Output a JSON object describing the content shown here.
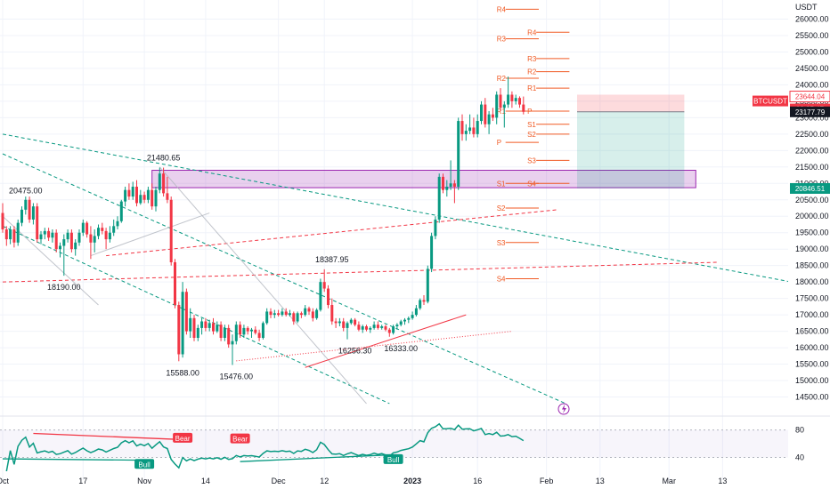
{
  "chart_data": {
    "type": "candlestick",
    "symbol": "BTCUSDT",
    "y_unit": "USDT",
    "price_axis": {
      "range": [
        14000,
        26500
      ],
      "ticks": [
        26000,
        25500,
        25000,
        24500,
        24000,
        23500,
        23000,
        22500,
        22000,
        21500,
        21000,
        20500,
        20000,
        19500,
        19000,
        18500,
        18000,
        17500,
        17000,
        16500,
        16000,
        15500,
        15000,
        14500
      ],
      "tick_labels": [
        "26000.00",
        "25500.00",
        "25000.00",
        "24500.00",
        "24000.00",
        "23500.00",
        "23000.00",
        "22500.00",
        "22000.00",
        "21500.00",
        "21000.00",
        "20500.00",
        "20000.00",
        "19500.00",
        "19000.00",
        "18500.00",
        "18000.00",
        "17500.00",
        "17000.00",
        "16500.00",
        "16000.00",
        "15500.00",
        "15000.00",
        "14500.00"
      ]
    },
    "time_axis": {
      "labels": [
        "Oct",
        "17",
        "Nov",
        "14",
        "Dec",
        "12",
        "2023",
        "16",
        "Feb",
        "13",
        "Mar",
        "13"
      ],
      "label_positions": [
        0,
        21,
        37,
        53,
        72,
        84,
        107,
        124,
        142,
        156,
        174,
        188
      ]
    },
    "price_tags": [
      {
        "label": "23644.04",
        "value": 23644.04,
        "color": "#f23645",
        "style": "outline"
      },
      {
        "label": "BTCUSDT",
        "value": 23400,
        "color": "#f23645",
        "style": "solid"
      },
      {
        "label": "08:35:47",
        "value": 23400,
        "color": "#f23645",
        "style": "solid"
      },
      {
        "label": "23177.79",
        "value": 23177.79,
        "color": "#131722",
        "style": "solid"
      },
      {
        "label": "20846.51",
        "value": 20846.51,
        "color": "#089981",
        "style": "solid"
      }
    ],
    "annotations": [
      {
        "text": "21480.65",
        "value": 21480.65,
        "bar": 42,
        "pos": "above"
      },
      {
        "text": "20475.00",
        "value": 20475,
        "bar": 6,
        "pos": "above"
      },
      {
        "text": "18190.00",
        "value": 18190,
        "bar": 16,
        "pos": "below"
      },
      {
        "text": "18387.95",
        "value": 18387.95,
        "bar": 86,
        "pos": "above"
      },
      {
        "text": "15588.00",
        "value": 15588,
        "bar": 47,
        "pos": "below"
      },
      {
        "text": "15476.00",
        "value": 15476,
        "bar": 61,
        "pos": "below"
      },
      {
        "text": "16256.30",
        "value": 16256.3,
        "bar": 92,
        "pos": "below"
      },
      {
        "text": "16333.00",
        "value": 16333,
        "bar": 104,
        "pos": "below"
      }
    ],
    "zone": {
      "from_bar": 39,
      "to_bar": 181,
      "low": 20870,
      "high": 21400,
      "color": "#9c27b0"
    },
    "position": {
      "from_bar": 150,
      "to_bar": 178,
      "entry": 23177.79,
      "stop": 23700,
      "target": 20846.51
    },
    "pivot_levels": [
      {
        "label": "R4",
        "value": 26300,
        "from_bar": 129,
        "to_bar": 140
      },
      {
        "label": "R3",
        "value": 25400,
        "from_bar": 129,
        "to_bar": 140
      },
      {
        "label": "R2",
        "value": 24200,
        "from_bar": 129,
        "to_bar": 140
      },
      {
        "label": "R1",
        "value": 23200,
        "from_bar": 129,
        "to_bar": 140
      },
      {
        "label": "P",
        "value": 22250,
        "from_bar": 129,
        "to_bar": 140
      },
      {
        "label": "S1",
        "value": 21000,
        "from_bar": 129,
        "to_bar": 140
      },
      {
        "label": "S2",
        "value": 20250,
        "from_bar": 129,
        "to_bar": 140
      },
      {
        "label": "S3",
        "value": 19200,
        "from_bar": 129,
        "to_bar": 140
      },
      {
        "label": "S4",
        "value": 18100,
        "from_bar": 129,
        "to_bar": 140
      },
      {
        "label": "R4",
        "value": 25600,
        "from_bar": 137,
        "to_bar": 148
      },
      {
        "label": "R3",
        "value": 24800,
        "from_bar": 137,
        "to_bar": 148
      },
      {
        "label": "R2",
        "value": 24400,
        "from_bar": 137,
        "to_bar": 148
      },
      {
        "label": "R1",
        "value": 23900,
        "from_bar": 137,
        "to_bar": 148
      },
      {
        "label": "P",
        "value": 23200,
        "from_bar": 137,
        "to_bar": 148
      },
      {
        "label": "S1",
        "value": 22800,
        "from_bar": 137,
        "to_bar": 148
      },
      {
        "label": "S2",
        "value": 22500,
        "from_bar": 137,
        "to_bar": 148
      },
      {
        "label": "S3",
        "value": 21700,
        "from_bar": 137,
        "to_bar": 148
      },
      {
        "label": "S4",
        "value": 21000,
        "from_bar": 137,
        "to_bar": 148
      }
    ],
    "trend_lines": [
      {
        "style": "dashed",
        "color": "#089981",
        "from": [
          0,
          22500
        ],
        "to": [
          206,
          18000
        ]
      },
      {
        "style": "dashed",
        "color": "#089981",
        "from": [
          0,
          21900
        ],
        "to": [
          147,
          14300
        ]
      },
      {
        "style": "dashed",
        "color": "#f23645",
        "from": [
          0,
          18000
        ],
        "to": [
          187,
          18600
        ]
      },
      {
        "style": "dashed",
        "color": "#f23645",
        "from": [
          27,
          18800
        ],
        "to": [
          145,
          20200
        ]
      },
      {
        "style": "dashed",
        "color": "#089981",
        "from": [
          0,
          19700
        ],
        "to": [
          101,
          14300
        ]
      },
      {
        "style": "solid",
        "color": "#b2b5be",
        "from": [
          41,
          21500
        ],
        "to": [
          95,
          14300
        ]
      },
      {
        "style": "solid",
        "color": "#b2b5be",
        "from": [
          0,
          20000
        ],
        "to": [
          25,
          17300
        ]
      },
      {
        "style": "solid",
        "color": "#b2b5be",
        "from": [
          23,
          18800
        ],
        "to": [
          54,
          20100
        ]
      },
      {
        "style": "dotted",
        "color": "#f23645",
        "from": [
          61,
          15600
        ],
        "to": [
          133,
          16500
        ]
      },
      {
        "style": "solid",
        "color": "#f23645",
        "from": [
          79,
          15400
        ],
        "to": [
          121,
          17000
        ]
      }
    ],
    "candles": [
      [
        20100,
        20400,
        19500,
        19600
      ],
      [
        19600,
        19700,
        19100,
        19300
      ],
      [
        19300,
        19700,
        19150,
        19600
      ],
      [
        19600,
        19700,
        19050,
        19200
      ],
      [
        19200,
        19900,
        19100,
        19800
      ],
      [
        19800,
        20300,
        19700,
        20200
      ],
      [
        20200,
        20600,
        20050,
        20500
      ],
      [
        20500,
        20600,
        19800,
        19900
      ],
      [
        19900,
        20400,
        19750,
        20300
      ],
      [
        20300,
        20400,
        19200,
        19300
      ],
      [
        19300,
        19550,
        19150,
        19450
      ],
      [
        19450,
        19650,
        19300,
        19550
      ],
      [
        19550,
        19650,
        19250,
        19350
      ],
      [
        19350,
        19600,
        19200,
        19500
      ],
      [
        19500,
        19600,
        18900,
        19000
      ],
      [
        19000,
        19200,
        18750,
        19100
      ],
      [
        19100,
        19450,
        18190,
        19300
      ],
      [
        19300,
        19600,
        19200,
        19500
      ],
      [
        19500,
        19600,
        18900,
        19000
      ],
      [
        19000,
        19300,
        18800,
        19200
      ],
      [
        19200,
        19600,
        19100,
        19500
      ],
      [
        19500,
        19900,
        19400,
        19800
      ],
      [
        19800,
        19850,
        19350,
        19450
      ],
      [
        19450,
        19700,
        18700,
        19200
      ],
      [
        19200,
        19600,
        18900,
        19400
      ],
      [
        19400,
        19750,
        19300,
        19650
      ],
      [
        19650,
        19800,
        19450,
        19550
      ],
      [
        19550,
        19650,
        19000,
        19300
      ],
      [
        19300,
        19700,
        19200,
        19500
      ],
      [
        19500,
        19900,
        19400,
        19700
      ],
      [
        19700,
        20000,
        19600,
        19850
      ],
      [
        19850,
        20500,
        19800,
        20450
      ],
      [
        20450,
        20900,
        20300,
        20800
      ],
      [
        20800,
        21000,
        20500,
        20600
      ],
      [
        20600,
        21050,
        20500,
        20900
      ],
      [
        20900,
        21100,
        20300,
        20400
      ],
      [
        20400,
        20800,
        20350,
        20650
      ],
      [
        20650,
        20750,
        20400,
        20500
      ],
      [
        20500,
        20900,
        20400,
        20800
      ],
      [
        20800,
        21000,
        20200,
        20300
      ],
      [
        20300,
        20900,
        20150,
        20800
      ],
      [
        20800,
        21480,
        20700,
        21300
      ],
      [
        21300,
        21480,
        20600,
        20700
      ],
      [
        20700,
        21200,
        20400,
        20500
      ],
      [
        20500,
        20600,
        18500,
        18600
      ],
      [
        18600,
        18700,
        17200,
        17300
      ],
      [
        17300,
        17400,
        15588,
        15800
      ],
      [
        15800,
        18000,
        15700,
        17700
      ],
      [
        17700,
        17800,
        16400,
        16500
      ],
      [
        16500,
        17200,
        16300,
        16900
      ],
      [
        16900,
        17000,
        16200,
        16300
      ],
      [
        16300,
        16700,
        16200,
        16600
      ],
      [
        16600,
        16900,
        16400,
        16800
      ],
      [
        16800,
        16900,
        16500,
        16600
      ],
      [
        16600,
        16850,
        16500,
        16750
      ],
      [
        16750,
        16900,
        16400,
        16500
      ],
      [
        16500,
        16800,
        16450,
        16700
      ],
      [
        16700,
        16800,
        16200,
        16300
      ],
      [
        16300,
        16700,
        16200,
        16600
      ],
      [
        16600,
        16700,
        16000,
        16100
      ],
      [
        16100,
        16400,
        15476,
        16200
      ],
      [
        16200,
        16800,
        16100,
        16700
      ],
      [
        16700,
        16800,
        16300,
        16400
      ],
      [
        16400,
        16700,
        16300,
        16600
      ],
      [
        16600,
        16650,
        16400,
        16500
      ],
      [
        16500,
        16600,
        16300,
        16550
      ],
      [
        16550,
        16650,
        16400,
        16450
      ],
      [
        16450,
        16550,
        16200,
        16300
      ],
      [
        16300,
        16800,
        16250,
        16750
      ],
      [
        16750,
        17200,
        16700,
        17100
      ],
      [
        17100,
        17200,
        16900,
        17000
      ],
      [
        17000,
        17150,
        16900,
        17050
      ],
      [
        17050,
        17150,
        16950,
        17000
      ],
      [
        17000,
        17200,
        16950,
        17100
      ],
      [
        17100,
        17200,
        16950,
        17000
      ],
      [
        17000,
        17150,
        16950,
        17050
      ],
      [
        17050,
        17100,
        16700,
        16800
      ],
      [
        16800,
        17100,
        16750,
        17050
      ],
      [
        17050,
        17100,
        16900,
        17000
      ],
      [
        17000,
        17300,
        16950,
        17200
      ],
      [
        17200,
        17250,
        17000,
        17100
      ],
      [
        17100,
        17200,
        16800,
        16900
      ],
      [
        16900,
        17200,
        16850,
        17150
      ],
      [
        17150,
        18100,
        17100,
        18000
      ],
      [
        18000,
        18387,
        17700,
        17800
      ],
      [
        17800,
        17900,
        17200,
        17300
      ],
      [
        17300,
        17500,
        16700,
        16800
      ],
      [
        16800,
        16900,
        16600,
        16750
      ],
      [
        16750,
        16900,
        16650,
        16800
      ],
      [
        16800,
        16900,
        16500,
        16600
      ],
      [
        16600,
        16800,
        16256,
        16750
      ],
      [
        16750,
        16900,
        16700,
        16850
      ],
      [
        16850,
        16900,
        16650,
        16700
      ],
      [
        16700,
        16800,
        16500,
        16550
      ],
      [
        16550,
        16700,
        16450,
        16650
      ],
      [
        16650,
        16700,
        16500,
        16550
      ],
      [
        16550,
        16650,
        16450,
        16600
      ],
      [
        16600,
        16800,
        16550,
        16700
      ],
      [
        16700,
        16800,
        16550,
        16600
      ],
      [
        16600,
        16700,
        16550,
        16650
      ],
      [
        16650,
        16700,
        16500,
        16550
      ],
      [
        16550,
        16600,
        16333,
        16450
      ],
      [
        16450,
        16700,
        16400,
        16650
      ],
      [
        16650,
        16750,
        16550,
        16700
      ],
      [
        16700,
        16850,
        16650,
        16800
      ],
      [
        16800,
        16900,
        16700,
        16850
      ],
      [
        16850,
        16950,
        16750,
        16900
      ],
      [
        16900,
        17100,
        16850,
        17000
      ],
      [
        17000,
        17300,
        16950,
        17200
      ],
      [
        17200,
        17500,
        17150,
        17450
      ],
      [
        17450,
        17600,
        17300,
        17400
      ],
      [
        17400,
        18500,
        17350,
        18400
      ],
      [
        18400,
        19500,
        18300,
        19400
      ],
      [
        19400,
        20000,
        19300,
        19900
      ],
      [
        19900,
        21300,
        19800,
        21200
      ],
      [
        21200,
        21300,
        20700,
        20800
      ],
      [
        20800,
        21100,
        20600,
        20900
      ],
      [
        20900,
        21700,
        20800,
        21000
      ],
      [
        21000,
        21100,
        20400,
        20900
      ],
      [
        20900,
        23000,
        20800,
        22900
      ],
      [
        22900,
        23100,
        22300,
        22500
      ],
      [
        22500,
        22800,
        22300,
        22600
      ],
      [
        22600,
        23100,
        22500,
        22700
      ],
      [
        22700,
        23000,
        22400,
        22500
      ],
      [
        22500,
        23100,
        22400,
        22900
      ],
      [
        22900,
        23500,
        22800,
        23400
      ],
      [
        23400,
        23600,
        22700,
        22800
      ],
      [
        22800,
        23200,
        22500,
        23100
      ],
      [
        23100,
        23300,
        22900,
        23000
      ],
      [
        23000,
        23800,
        22800,
        23700
      ],
      [
        23700,
        23900,
        23200,
        23300
      ],
      [
        23300,
        23500,
        22700,
        23400
      ],
      [
        23400,
        24250,
        23300,
        23700
      ],
      [
        23700,
        23800,
        23300,
        23500
      ],
      [
        23500,
        23700,
        23400,
        23600
      ],
      [
        23600,
        23650,
        23300,
        23400
      ],
      [
        23400,
        23644,
        23100,
        23178
      ]
    ],
    "rsi": {
      "ticks": [
        80,
        40
      ],
      "tick_labels": [
        "80.00",
        "40.00"
      ],
      "range": [
        20,
        95
      ],
      "signals": [
        {
          "label": "Bear",
          "bar": 47,
          "value": 68,
          "color": "#f23645"
        },
        {
          "label": "Bear",
          "bar": 62,
          "value": 67,
          "color": "#f23645"
        },
        {
          "label": "Bull",
          "bar": 37,
          "value": 30,
          "color": "#089981"
        },
        {
          "label": "Bull",
          "bar": 102,
          "value": 37,
          "color": "#089981"
        }
      ]
    }
  }
}
